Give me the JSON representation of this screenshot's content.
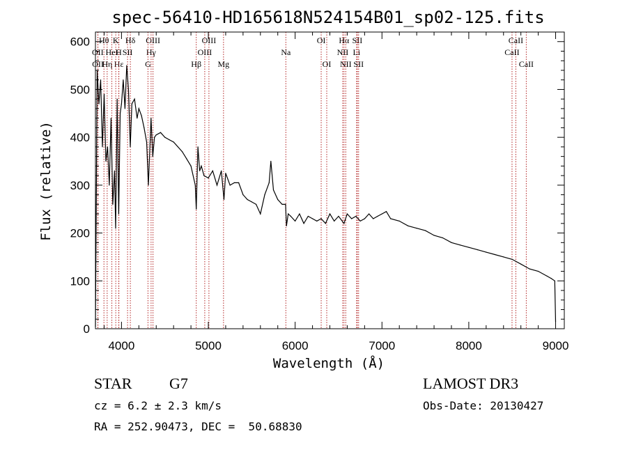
{
  "chart_data": {
    "type": "line",
    "title": "spec-56410-HD165618N524154B01_sp02-125.fits",
    "xlabel": "Wavelength (Å)",
    "ylabel": "Flux (relative)",
    "xlim": [
      3700,
      9100
    ],
    "ylim": [
      0,
      620
    ],
    "xticks": [
      4000,
      5000,
      6000,
      7000,
      8000,
      9000
    ],
    "yticks": [
      0,
      100,
      200,
      300,
      400,
      500,
      600
    ],
    "series": [
      {
        "name": "flux",
        "color": "#000000",
        "x": [
          3700,
          3720,
          3740,
          3760,
          3780,
          3800,
          3820,
          3840,
          3860,
          3880,
          3900,
          3920,
          3933,
          3950,
          3968,
          3985,
          4000,
          4020,
          4040,
          4060,
          4080,
          4101,
          4120,
          4150,
          4180,
          4200,
          4230,
          4260,
          4290,
          4310,
          4340,
          4360,
          4380,
          4400,
          4450,
          4500,
          4550,
          4600,
          4650,
          4700,
          4750,
          4800,
          4850,
          4861,
          4880,
          4900,
          4920,
          4950,
          5000,
          5050,
          5100,
          5150,
          5180,
          5200,
          5250,
          5300,
          5350,
          5400,
          5450,
          5500,
          5550,
          5600,
          5650,
          5700,
          5720,
          5750,
          5800,
          5850,
          5890,
          5900,
          5920,
          5950,
          6000,
          6050,
          6100,
          6150,
          6200,
          6250,
          6300,
          6350,
          6400,
          6450,
          6500,
          6563,
          6600,
          6650,
          6700,
          6750,
          6800,
          6850,
          6900,
          6950,
          7000,
          7050,
          7100,
          7200,
          7300,
          7400,
          7500,
          7600,
          7700,
          7800,
          7900,
          8000,
          8100,
          8200,
          8300,
          8400,
          8500,
          8600,
          8700,
          8800,
          8900,
          8950,
          8990,
          9000
        ],
        "values": [
          5,
          540,
          470,
          520,
          380,
          490,
          350,
          380,
          300,
          440,
          260,
          330,
          210,
          480,
          240,
          450,
          470,
          520,
          460,
          550,
          500,
          380,
          470,
          480,
          440,
          460,
          445,
          420,
          390,
          300,
          440,
          360,
          400,
          405,
          410,
          400,
          395,
          390,
          380,
          370,
          355,
          340,
          300,
          250,
          380,
          330,
          340,
          320,
          315,
          330,
          300,
          330,
          270,
          325,
          300,
          305,
          305,
          280,
          270,
          265,
          260,
          240,
          280,
          305,
          350,
          290,
          270,
          260,
          260,
          215,
          240,
          235,
          225,
          240,
          220,
          235,
          230,
          225,
          230,
          220,
          240,
          225,
          235,
          220,
          240,
          230,
          235,
          225,
          230,
          240,
          230,
          235,
          240,
          245,
          230,
          225,
          215,
          210,
          205,
          195,
          190,
          180,
          175,
          170,
          165,
          160,
          155,
          150,
          145,
          135,
          125,
          120,
          110,
          105,
          100,
          15
        ]
      }
    ],
    "lines": [
      {
        "name": "Hθ",
        "wl": 3798,
        "row": 0
      },
      {
        "name": "OII",
        "wl": 3727,
        "row": 1
      },
      {
        "name": "OII",
        "wl": 3729,
        "row": 2
      },
      {
        "name": "Hη",
        "wl": 3835,
        "row": 2
      },
      {
        "name": "HeI",
        "wl": 3889,
        "row": 1
      },
      {
        "name": "Hε",
        "wl": 3970,
        "row": 2
      },
      {
        "name": "K",
        "wl": 3934,
        "row": 0
      },
      {
        "name": "SII",
        "wl": 4070,
        "row": 1
      },
      {
        "name": "H",
        "wl": 3968,
        "row": 1
      },
      {
        "name": "Hδ",
        "wl": 4102,
        "row": 0
      },
      {
        "name": "OIII",
        "wl": 4363,
        "row": 0
      },
      {
        "name": "Hγ",
        "wl": 4341,
        "row": 1
      },
      {
        "name": "G",
        "wl": 4305,
        "row": 2
      },
      {
        "name": "OIII",
        "wl": 5007,
        "row": 0
      },
      {
        "name": "OIII",
        "wl": 4959,
        "row": 1
      },
      {
        "name": "Hβ",
        "wl": 4861,
        "row": 2
      },
      {
        "name": "Mg",
        "wl": 5175,
        "row": 2
      },
      {
        "name": "Na",
        "wl": 5893,
        "row": 1
      },
      {
        "name": "OI",
        "wl": 6300,
        "row": 0
      },
      {
        "name": "OI",
        "wl": 6364,
        "row": 2
      },
      {
        "name": "Hα",
        "wl": 6563,
        "row": 0
      },
      {
        "name": "NII",
        "wl": 6548,
        "row": 1
      },
      {
        "name": "NII",
        "wl": 6583,
        "row": 2
      },
      {
        "name": "SII",
        "wl": 6716,
        "row": 0
      },
      {
        "name": "Li",
        "wl": 6708,
        "row": 1
      },
      {
        "name": "SII",
        "wl": 6731,
        "row": 2
      },
      {
        "name": "CaII",
        "wl": 8542,
        "row": 0
      },
      {
        "name": "CaII",
        "wl": 8498,
        "row": 1
      },
      {
        "name": "CaII",
        "wl": 8662,
        "row": 2
      }
    ]
  },
  "info": {
    "class": "STAR",
    "subclass": "G7",
    "survey": "LAMOST DR3",
    "cz": "cz = 6.2 ± 2.3 km/s",
    "obs_date": "Obs-Date: 20130427",
    "radec": "RA = 252.90473, DEC =  50.68830"
  }
}
